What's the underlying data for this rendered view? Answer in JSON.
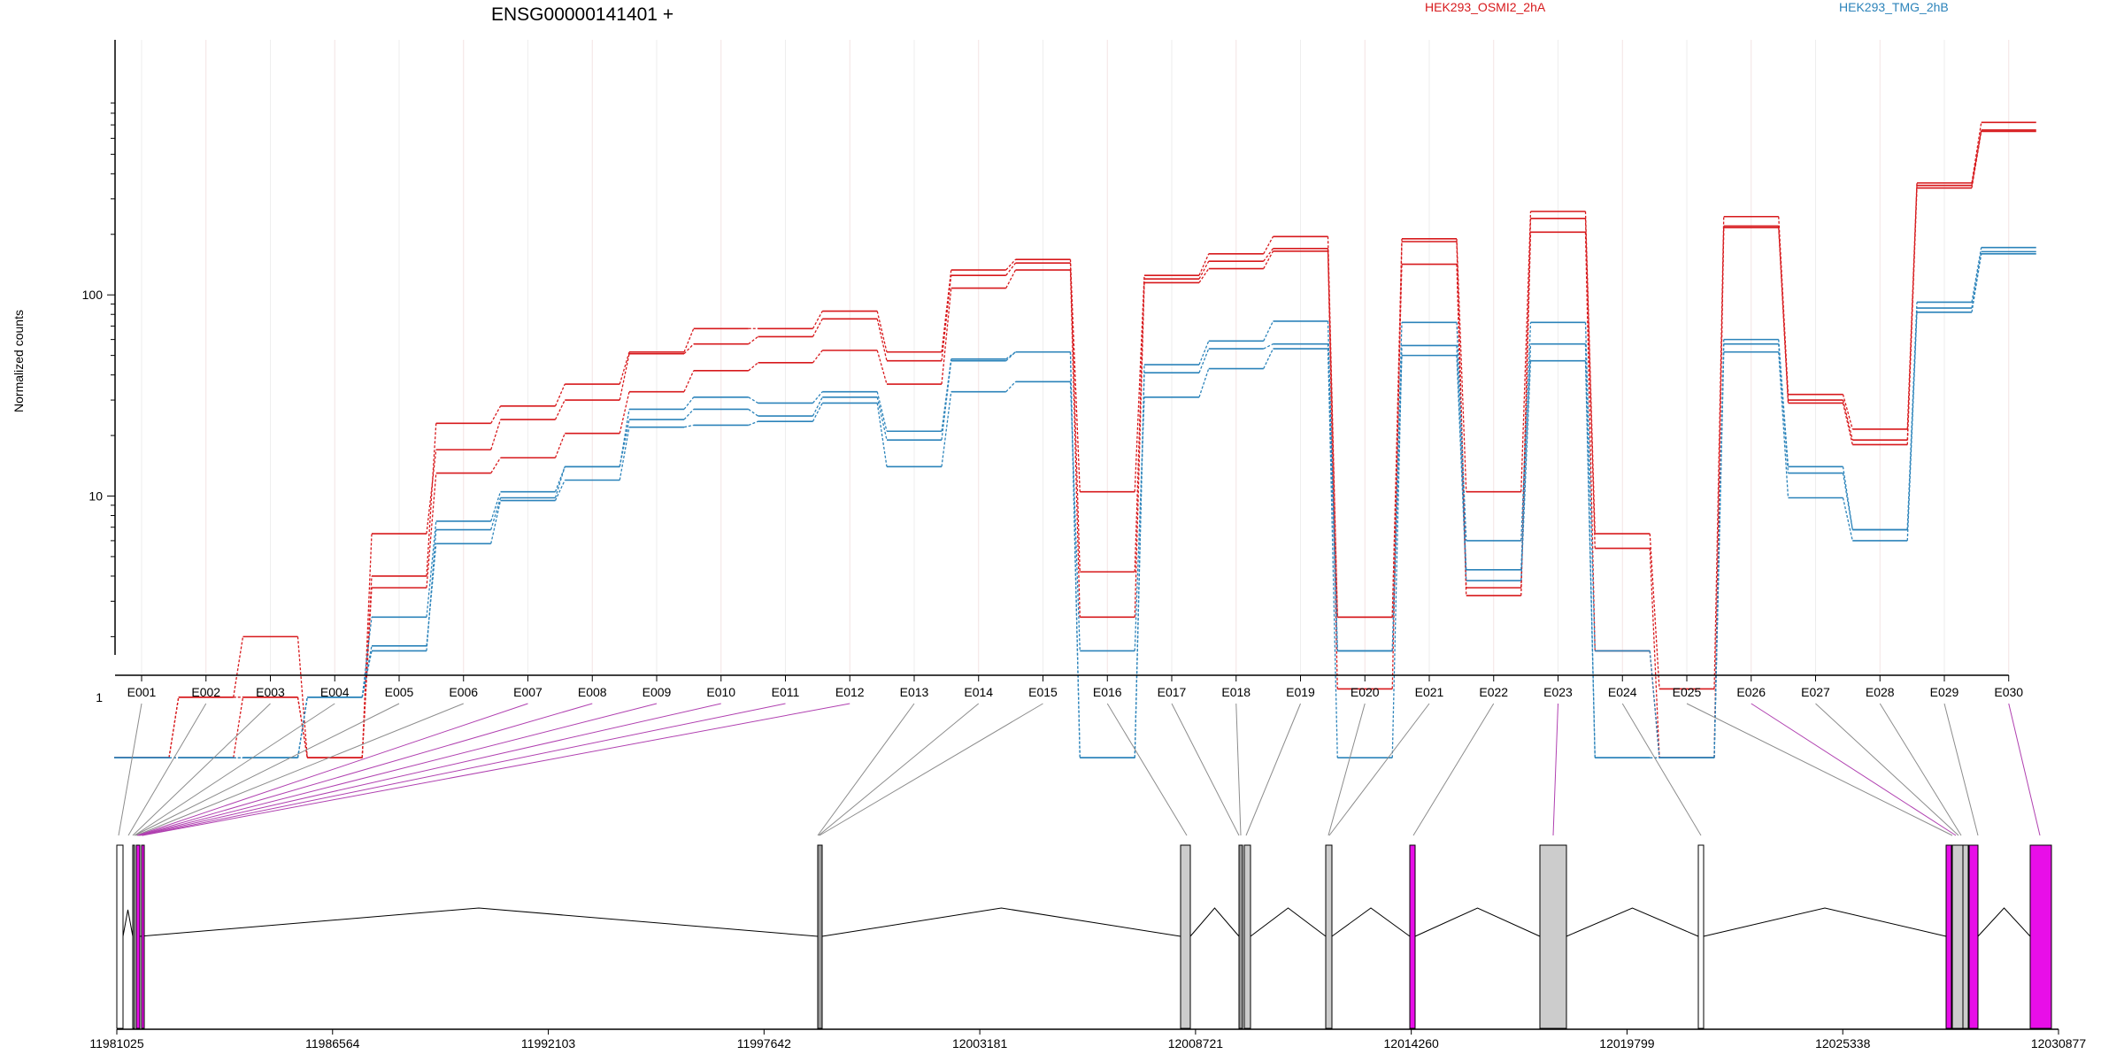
{
  "chart_data": {
    "type": "line",
    "title": "ENSG00000141401 +",
    "ylabel": "Normalized counts",
    "y_scale": "log",
    "y_ticks": [
      {
        "value": 1,
        "label": "1"
      },
      {
        "value": 10,
        "label": "10"
      },
      {
        "value": 100,
        "label": "100"
      }
    ],
    "categories": [
      "E001",
      "E002",
      "E003",
      "E004",
      "E005",
      "E006",
      "E007",
      "E008",
      "E009",
      "E010",
      "E011",
      "E012",
      "E013",
      "E014",
      "E015",
      "E016",
      "E017",
      "E018",
      "E019",
      "E020",
      "E021",
      "E022",
      "E023",
      "E024",
      "E025",
      "E026",
      "E027",
      "E028",
      "E029",
      "E030"
    ],
    "legend": [
      {
        "label": "HEK293_OSMI2_2hA",
        "color": "#d7191c"
      },
      {
        "label": "HEK293_TMG_2hB",
        "color": "#2b83ba"
      }
    ],
    "series": [
      {
        "group": 0,
        "values": [
          0.5,
          1.0,
          1.0,
          0.5,
          4.0,
          23,
          28,
          36,
          52,
          68,
          68,
          83,
          52,
          133,
          150,
          10.5,
          125,
          160,
          195,
          2.5,
          190,
          10.5,
          260,
          6.5,
          1.1,
          245,
          32,
          21.5,
          360,
          720
        ]
      },
      {
        "group": 0,
        "values": [
          0.5,
          1.0,
          2.0,
          0.5,
          6.5,
          17,
          24,
          30,
          51,
          57,
          62,
          76,
          47,
          125,
          144,
          4.2,
          120,
          147,
          170,
          1.1,
          184,
          3.5,
          240,
          5.5,
          0.5,
          220,
          30,
          19,
          350,
          660
        ]
      },
      {
        "group": 0,
        "values": [
          0.5,
          0.5,
          1.0,
          0.5,
          3.5,
          13,
          15.5,
          20.5,
          33,
          42,
          46,
          53,
          36,
          108,
          133,
          2.5,
          115,
          135,
          165,
          2.5,
          142,
          3.2,
          205,
          1.7,
          0.5,
          216,
          29,
          18,
          340,
          650
        ]
      },
      {
        "group": 1,
        "values": [
          0.5,
          0.5,
          0.5,
          1.0,
          2.5,
          7.5,
          10.5,
          14,
          27,
          31,
          29,
          33,
          21,
          48,
          52,
          0.5,
          45,
          59,
          74,
          1.7,
          73,
          6,
          73,
          1.7,
          0.5,
          60,
          14,
          6.8,
          92,
          172
        ]
      },
      {
        "group": 1,
        "values": [
          0.5,
          0.5,
          0.5,
          1.0,
          1.7,
          6.8,
          9.8,
          14,
          24,
          27,
          25,
          31,
          19,
          47,
          52,
          0.5,
          41,
          54,
          57,
          0.5,
          56,
          4.3,
          57,
          0.5,
          0.5,
          57,
          13,
          6.8,
          86,
          164
        ]
      },
      {
        "group": 1,
        "values": [
          0.5,
          0.5,
          0.5,
          1.0,
          1.8,
          5.8,
          9.5,
          12,
          22,
          22.5,
          23.5,
          29,
          14,
          33,
          37,
          1.7,
          31,
          43,
          54,
          1.7,
          50,
          3.8,
          47,
          0.5,
          0.5,
          52,
          9.8,
          6.0,
          82,
          160
        ]
      }
    ],
    "genomic_axis_ticks": [
      "11981025",
      "11986564",
      "11992103",
      "11997642",
      "12003181",
      "12008721",
      "12014260",
      "12019799",
      "12025338",
      "12030877"
    ],
    "exon_colors": {
      "normal": "#cccccc",
      "highlight": "#e80ee8",
      "intron": "#000000"
    }
  }
}
